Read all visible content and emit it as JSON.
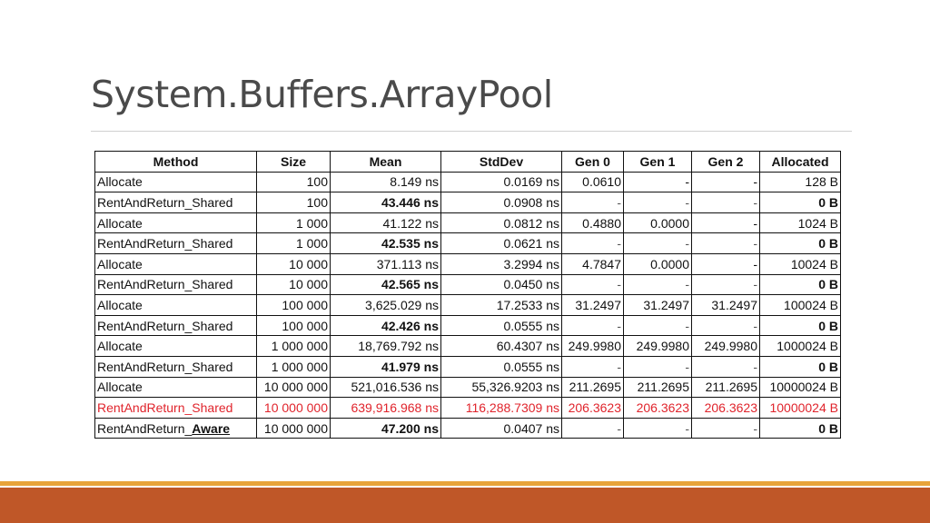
{
  "slide": {
    "title": "System.Buffers.ArrayPool"
  },
  "colors": {
    "highlight": "#e0242c",
    "footer_bar": "#bf5728",
    "footer_line": "#e8a33a"
  },
  "table": {
    "headers": [
      "Method",
      "Size",
      "Mean",
      "StdDev",
      "Gen 0",
      "Gen 1",
      "Gen 2",
      "Allocated"
    ],
    "rows": [
      {
        "method": "Allocate",
        "size": "100",
        "mean": "8.149 ns",
        "stddev": "0.0169 ns",
        "gen0": "0.0610",
        "gen1": "-",
        "gen2": "-",
        "allocated": "128 B",
        "bold": false,
        "highlight": false
      },
      {
        "method": "RentAndReturn_Shared",
        "size": "100",
        "mean": "43.446 ns",
        "stddev": "0.0908 ns",
        "gen0": "-",
        "gen1": "-",
        "gen2": "-",
        "allocated": "0 B",
        "bold": true,
        "highlight": false
      },
      {
        "method": "Allocate",
        "size": "1 000",
        "mean": "41.122 ns",
        "stddev": "0.0812 ns",
        "gen0": "0.4880",
        "gen1": "0.0000",
        "gen2": "-",
        "allocated": "1024 B",
        "bold": false,
        "highlight": false
      },
      {
        "method": "RentAndReturn_Shared",
        "size": "1 000",
        "mean": "42.535 ns",
        "stddev": "0.0621 ns",
        "gen0": "-",
        "gen1": "-",
        "gen2": "-",
        "allocated": "0 B",
        "bold": true,
        "highlight": false
      },
      {
        "method": "Allocate",
        "size": "10 000",
        "mean": "371.113 ns",
        "stddev": "3.2994 ns",
        "gen0": "4.7847",
        "gen1": "0.0000",
        "gen2": "-",
        "allocated": "10024 B",
        "bold": false,
        "highlight": false
      },
      {
        "method": "RentAndReturn_Shared",
        "size": "10 000",
        "mean": "42.565 ns",
        "stddev": "0.0450 ns",
        "gen0": "-",
        "gen1": "-",
        "gen2": "-",
        "allocated": "0 B",
        "bold": true,
        "highlight": false
      },
      {
        "method": "Allocate",
        "size": "100 000",
        "mean": "3,625.029 ns",
        "stddev": "17.2533 ns",
        "gen0": "31.2497",
        "gen1": "31.2497",
        "gen2": "31.2497",
        "allocated": "100024 B",
        "bold": false,
        "highlight": false
      },
      {
        "method": "RentAndReturn_Shared",
        "size": "100 000",
        "mean": "42.426 ns",
        "stddev": "0.0555 ns",
        "gen0": "-",
        "gen1": "-",
        "gen2": "-",
        "allocated": "0 B",
        "bold": true,
        "highlight": false
      },
      {
        "method": "Allocate",
        "size": "1 000 000",
        "mean": "18,769.792 ns",
        "stddev": "60.4307 ns",
        "gen0": "249.9980",
        "gen1": "249.9980",
        "gen2": "249.9980",
        "allocated": "1000024 B",
        "bold": false,
        "highlight": false
      },
      {
        "method": "RentAndReturn_Shared",
        "size": "1 000 000",
        "mean": "41.979 ns",
        "stddev": "0.0555 ns",
        "gen0": "-",
        "gen1": "-",
        "gen2": "-",
        "allocated": "0 B",
        "bold": true,
        "highlight": false
      },
      {
        "method": "Allocate",
        "size": "10 000 000",
        "mean": "521,016.536 ns",
        "stddev": "55,326.9203 ns",
        "gen0": "211.2695",
        "gen1": "211.2695",
        "gen2": "211.2695",
        "allocated": "10000024 B",
        "bold": false,
        "highlight": false
      },
      {
        "method": "RentAndReturn_Shared",
        "size": "10 000 000",
        "mean": "639,916.968 ns",
        "stddev": "116,288.7309 ns",
        "gen0": "206.3623",
        "gen1": "206.3623",
        "gen2": "206.3623",
        "allocated": "10000024 B",
        "bold": false,
        "highlight": true
      },
      {
        "method": "RentAndReturn_",
        "method_emph": "Aware",
        "size": "10 000 000",
        "mean": "47.200 ns",
        "stddev": "0.0407 ns",
        "gen0": "-",
        "gen1": "-",
        "gen2": "-",
        "allocated": "0 B",
        "bold": true,
        "highlight": false
      }
    ]
  }
}
